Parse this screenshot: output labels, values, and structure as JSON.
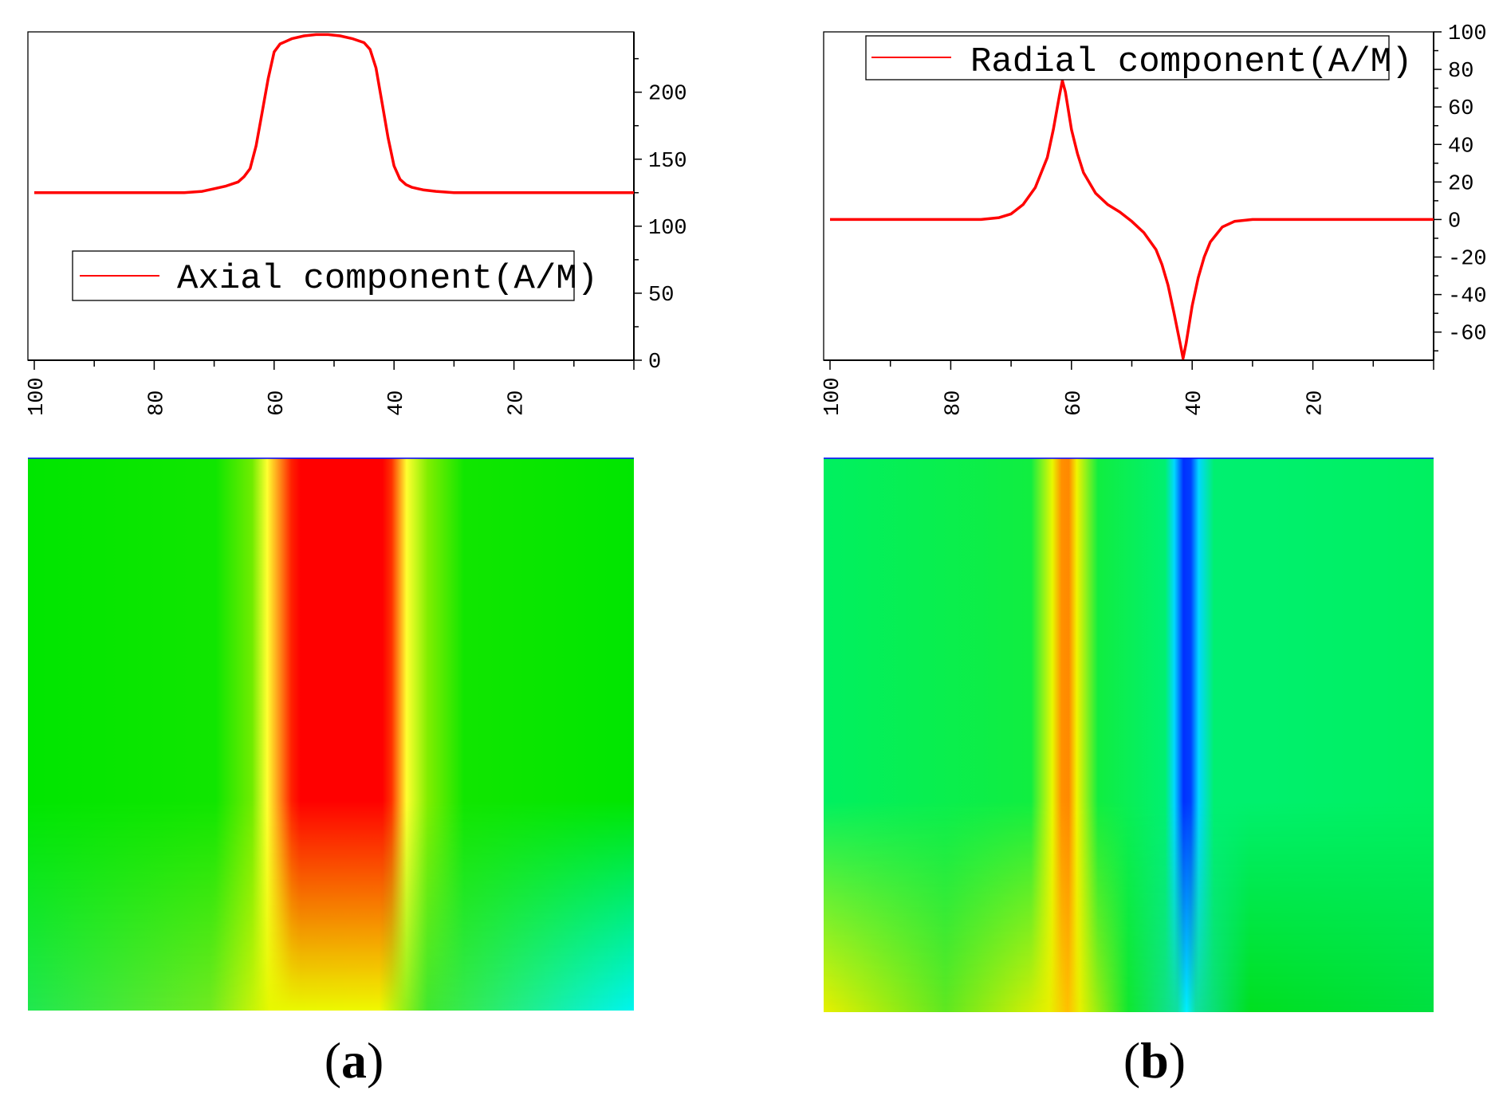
{
  "figure": {
    "panels": [
      {
        "label_open": "(",
        "label_letter": "a",
        "label_close": ")"
      },
      {
        "label_open": "(",
        "label_letter": "b",
        "label_close": ")"
      }
    ]
  },
  "colors": {
    "line": "#ff0000",
    "green": "#00e600",
    "red": "#ff0000",
    "yellow": "#ffff00",
    "cyan": "#00ffff",
    "blue": "#0000ff"
  },
  "chart_data": [
    {
      "type": "line",
      "panel": "a",
      "legend": "Axial component(A/M)",
      "legend_position": "lower-left",
      "x_reversed": true,
      "xlim": [
        0,
        100
      ],
      "ylim": [
        0,
        245
      ],
      "y_axis_side": "right",
      "xticks": [
        100,
        80,
        60,
        40,
        20
      ],
      "xtick_labels": [
        "100",
        "80",
        "60",
        "40",
        "20"
      ],
      "yticks": [
        0,
        50,
        100,
        150,
        200
      ],
      "ytick_labels": [
        "0",
        "50",
        "100",
        "150",
        "200"
      ],
      "series": [
        {
          "name": "Axial component(A/M)",
          "x": [
            100,
            75,
            72,
            70,
            68,
            66,
            65,
            64,
            63,
            62,
            61,
            60,
            59,
            58,
            57,
            55,
            53,
            51,
            49,
            47,
            45,
            44,
            43,
            42,
            41,
            40,
            39,
            38,
            37,
            36,
            35,
            33,
            30,
            0
          ],
          "y": [
            125,
            125,
            126,
            128,
            130,
            133,
            137,
            143,
            160,
            185,
            210,
            230,
            236,
            238,
            240,
            242,
            243,
            243,
            242,
            240,
            237,
            232,
            218,
            192,
            166,
            145,
            135,
            131,
            129,
            128,
            127,
            126,
            125,
            125
          ]
        }
      ]
    },
    {
      "type": "line",
      "panel": "b",
      "legend": "Radial component(A/M)",
      "legend_position": "top",
      "x_reversed": true,
      "xlim": [
        0,
        100
      ],
      "ylim": [
        -75,
        100
      ],
      "y_axis_side": "right",
      "xticks": [
        100,
        80,
        60,
        40,
        20
      ],
      "xtick_labels": [
        "100",
        "80",
        "60",
        "40",
        "20"
      ],
      "yticks": [
        100,
        80,
        60,
        40,
        20,
        0,
        -20,
        -40,
        -60
      ],
      "ytick_labels": [
        "100",
        "80",
        "60",
        "40",
        "20",
        "0",
        "-20",
        "-40",
        "-60"
      ],
      "series": [
        {
          "name": "Radial component(A/M)",
          "x": [
            100,
            75,
            72,
            70,
            68,
            66,
            64,
            63,
            62,
            61.5,
            61,
            60,
            59,
            58,
            56,
            54,
            52,
            50,
            48,
            46,
            45,
            44,
            43,
            42,
            41.5,
            41,
            40,
            39,
            38,
            37,
            35,
            33,
            30,
            25,
            0
          ],
          "y": [
            0,
            0,
            1,
            3,
            8,
            17,
            33,
            48,
            66,
            74,
            68,
            48,
            35,
            25,
            14,
            8,
            4,
            -1,
            -7,
            -16,
            -24,
            -35,
            -50,
            -66,
            -74,
            -66,
            -46,
            -31,
            -20,
            -12,
            -4,
            -1,
            0,
            0,
            0
          ]
        }
      ]
    }
  ]
}
